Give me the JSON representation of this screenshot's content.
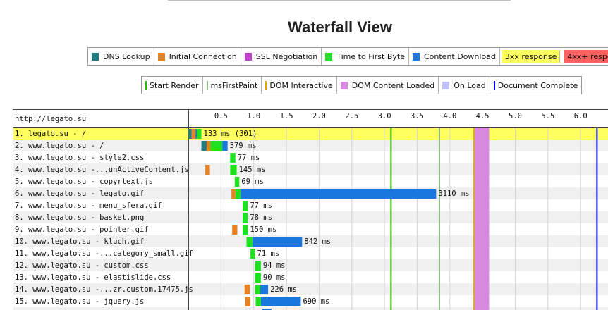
{
  "title": "Waterfall View",
  "legend_row1": [
    {
      "label": "DNS Lookup",
      "color": "#1f7c83",
      "style": "swatch"
    },
    {
      "label": "Initial Connection",
      "color": "#e58226",
      "style": "swatch"
    },
    {
      "label": "SSL Negotiation",
      "color": "#c141cd",
      "style": "swatch"
    },
    {
      "label": "Time to First Byte",
      "color": "#1fe11f",
      "style": "swatch"
    },
    {
      "label": "Content Download",
      "color": "#1977dd",
      "style": "swatch"
    },
    {
      "label": "3xx response",
      "color": "#ffff60",
      "style": "background"
    },
    {
      "label": "4xx+ response",
      "color": "#ff6060",
      "style": "background"
    }
  ],
  "legend_row2": [
    {
      "label": "Start Render",
      "color": "#28bc00",
      "style": "line"
    },
    {
      "label": "msFirstPaint",
      "color": "#8fbc83",
      "style": "line"
    },
    {
      "label": "DOM Interactive",
      "color": "#e5a500",
      "style": "line"
    },
    {
      "label": "DOM Content Loaded",
      "color": "#d888df",
      "style": "swatch"
    },
    {
      "label": "On Load",
      "color": "#c0c0ff",
      "style": "swatch"
    },
    {
      "label": "Document Complete",
      "color": "#0000ff",
      "style": "line"
    }
  ],
  "chart_data": {
    "type": "waterfall",
    "page_label": "http://legato.su",
    "x_ticks": [
      "0.5",
      "1.0",
      "1.5",
      "2.0",
      "2.5",
      "3.0",
      "3.5",
      "4.0",
      "4.5",
      "5.0",
      "5.5",
      "6.0"
    ],
    "x_tick_values": [
      0.5,
      1.0,
      1.5,
      2.0,
      2.5,
      3.0,
      3.5,
      4.0,
      4.5,
      5.0,
      5.5,
      6.0
    ],
    "x_range_seconds": [
      0,
      6.28
    ],
    "events": {
      "start_render": 3.1,
      "ms_first_paint": 3.84,
      "dom_interactive": 4.37,
      "dom_content_loaded": [
        4.38,
        4.6
      ],
      "document_complete": 6.25
    },
    "colors": {
      "dns": "#1f7c83",
      "connect": "#e58226",
      "ssl": "#c141cd",
      "ttfb": "#1fe11f",
      "download": "#1977dd",
      "start_render": "#28bc00",
      "first_paint": "#8fbc83",
      "dom_interactive": "#e5a500",
      "dom_content_loaded": "#d888df",
      "document_complete": "#0000ff",
      "highlight_3xx": "#ffff60"
    },
    "requests": [
      {
        "label": "1. legato.su - /",
        "duration_label": "133 ms (301)",
        "highlight": "3xx",
        "segments": [
          {
            "phase": "dns",
            "start": 0.0,
            "end": 0.05
          },
          {
            "phase": "connect",
            "start": 0.05,
            "end": 0.11
          },
          {
            "phase": "download",
            "start": 0.11,
            "end": 0.13
          },
          {
            "phase": "ttfb",
            "start": 0.13,
            "end": 0.2
          }
        ]
      },
      {
        "label": "2. www.legato.su - /",
        "duration_label": "379 ms",
        "highlight": "",
        "segments": [
          {
            "phase": "dns",
            "start": 0.2,
            "end": 0.28
          },
          {
            "phase": "connect",
            "start": 0.28,
            "end": 0.34
          },
          {
            "phase": "ttfb",
            "start": 0.34,
            "end": 0.52
          },
          {
            "phase": "download",
            "start": 0.52,
            "end": 0.6
          }
        ]
      },
      {
        "label": "3. www.legato.su - style2.css",
        "duration_label": "77 ms",
        "highlight": "",
        "segments": [
          {
            "phase": "ttfb",
            "start": 0.64,
            "end": 0.72
          }
        ]
      },
      {
        "label": "4. www.legato.su -...unActiveContent.js",
        "duration_label": "145 ms",
        "highlight": "",
        "segments": [
          {
            "phase": "connect",
            "start": 0.26,
            "end": 0.33
          },
          {
            "phase": "ttfb",
            "start": 0.64,
            "end": 0.74
          }
        ]
      },
      {
        "label": "5. www.legato.su - copyrtext.js",
        "duration_label": "69 ms",
        "highlight": "",
        "segments": [
          {
            "phase": "ttfb",
            "start": 0.71,
            "end": 0.78
          }
        ]
      },
      {
        "label": "6. www.legato.su - legato.gif",
        "duration_label": "3110 ms",
        "highlight": "",
        "segments": [
          {
            "phase": "connect",
            "start": 0.66,
            "end": 0.72
          },
          {
            "phase": "ttfb",
            "start": 0.72,
            "end": 0.8
          },
          {
            "phase": "download",
            "start": 0.8,
            "end": 3.79
          }
        ]
      },
      {
        "label": "7. www.legato.su - menu_sfera.gif",
        "duration_label": "77 ms",
        "highlight": "",
        "segments": [
          {
            "phase": "ttfb",
            "start": 0.83,
            "end": 0.91
          }
        ]
      },
      {
        "label": "8. www.legato.su - basket.png",
        "duration_label": "78 ms",
        "highlight": "",
        "segments": [
          {
            "phase": "ttfb",
            "start": 0.83,
            "end": 0.91
          }
        ]
      },
      {
        "label": "9. www.legato.su - pointer.gif",
        "duration_label": "150 ms",
        "highlight": "",
        "segments": [
          {
            "phase": "connect",
            "start": 0.67,
            "end": 0.75
          },
          {
            "phase": "ttfb",
            "start": 0.83,
            "end": 0.91
          }
        ]
      },
      {
        "label": "10. www.legato.su - kluch.gif",
        "duration_label": "842 ms",
        "highlight": "",
        "segments": [
          {
            "phase": "ttfb",
            "start": 0.89,
            "end": 0.98
          },
          {
            "phase": "download",
            "start": 0.98,
            "end": 1.74
          }
        ]
      },
      {
        "label": "11. www.legato.su -...category_small.gif",
        "duration_label": "71 ms",
        "highlight": "",
        "segments": [
          {
            "phase": "ttfb",
            "start": 0.95,
            "end": 1.02
          }
        ]
      },
      {
        "label": "12. www.legato.su - custom.css",
        "duration_label": "94 ms",
        "highlight": "",
        "segments": [
          {
            "phase": "ttfb",
            "start": 1.02,
            "end": 1.11
          }
        ]
      },
      {
        "label": "13. www.legato.su - elastislide.css",
        "duration_label": "90 ms",
        "highlight": "",
        "segments": [
          {
            "phase": "ttfb",
            "start": 1.02,
            "end": 1.11
          }
        ]
      },
      {
        "label": "14. www.legato.su -...zr.custom.17475.js",
        "duration_label": "226 ms",
        "highlight": "",
        "segments": [
          {
            "phase": "connect",
            "start": 0.86,
            "end": 0.94
          },
          {
            "phase": "ttfb",
            "start": 1.02,
            "end": 1.1
          },
          {
            "phase": "download",
            "start": 1.1,
            "end": 1.22
          }
        ]
      },
      {
        "label": "15. www.legato.su - jquery.js",
        "duration_label": "690 ms",
        "highlight": "",
        "segments": [
          {
            "phase": "connect",
            "start": 0.87,
            "end": 0.95
          },
          {
            "phase": "ttfb",
            "start": 1.03,
            "end": 1.11
          },
          {
            "phase": "download",
            "start": 1.11,
            "end": 1.72
          }
        ]
      },
      {
        "label": "",
        "duration_label": "",
        "highlight": "",
        "segments": [
          {
            "phase": "download",
            "start": 1.13,
            "end": 1.27
          }
        ]
      }
    ]
  }
}
